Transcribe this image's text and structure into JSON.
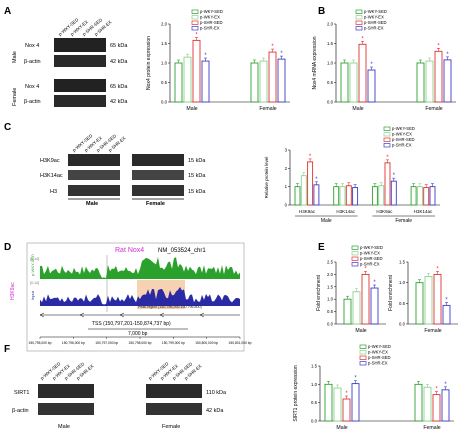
{
  "panels": {
    "A": "A",
    "B": "B",
    "C": "C",
    "D": "D",
    "E": "E",
    "F": "F"
  },
  "groups": [
    "p-WKY-SED",
    "p-WKY-EX",
    "p-SHR-SED",
    "p-SHR-EX"
  ],
  "sexes": {
    "male": "Male",
    "female": "Female"
  },
  "blot_rows": {
    "nox4": "Nox 4",
    "bactin": "β-actin",
    "h3k9ac": "H3K9ac",
    "h3k14ac": "H3K14ac",
    "h3": "H3",
    "sirt1": "SIRT1"
  },
  "kda": {
    "k65": "65 kDa",
    "k42": "42 kDa",
    "k15": "15 kDa",
    "k110": "110 kDa"
  },
  "star": "*",
  "track": {
    "title_rat": "Rat Nox4",
    "title_nm": "NM_053524_chr1",
    "sample": "H3K9ac",
    "input": "Input",
    "scale1": "[0-14]",
    "scale2": "[0-14]",
    "peak": "Peak region (150,796,200-150,796,800)",
    "tss": "TSS (150,797,201-150,874,737 bp)",
    "kb": "7,000 bp",
    "coords": [
      "150,795,000 bp",
      "150,796,000 bp",
      "150,797,000 bp",
      "150,798,000 bp",
      "150,799,000 bp",
      "150,800,000 bp",
      "150,801,000 bp"
    ]
  },
  "colors": {
    "wky_sed": "#2ca02c",
    "wky_ex": "#8fd08f",
    "shr_sed": "#e0312f",
    "shr_ex": "#3a3acc"
  },
  "chart_data": [
    {
      "panel": "A",
      "type": "bar",
      "ylabel": "Nox4 protein expression",
      "ylim": [
        0,
        2.0
      ],
      "yticks": [
        0,
        0.5,
        1.0,
        1.5,
        2.0
      ],
      "categories": [
        "Male",
        "Female"
      ],
      "series": [
        {
          "name": "p-WKY-SED",
          "values": [
            1.0,
            1.0
          ]
        },
        {
          "name": "p-WKY-EX",
          "values": [
            1.15,
            1.05
          ]
        },
        {
          "name": "p-SHR-SED",
          "values": [
            1.58,
            1.28
          ]
        },
        {
          "name": "p-SHR-EX",
          "values": [
            1.05,
            1.1
          ]
        }
      ],
      "stars": [
        [
          false,
          false,
          true,
          true
        ],
        [
          false,
          false,
          true,
          true
        ]
      ]
    },
    {
      "panel": "B",
      "type": "bar",
      "ylabel": "Nox4 mRNA expression",
      "ylim": [
        0,
        2.0
      ],
      "yticks": [
        0,
        0.5,
        1.0,
        1.5,
        2.0
      ],
      "categories": [
        "Male",
        "Female"
      ],
      "series": [
        {
          "name": "p-WKY-SED",
          "values": [
            1.0,
            1.0
          ]
        },
        {
          "name": "p-WKY-EX",
          "values": [
            1.0,
            1.05
          ]
        },
        {
          "name": "p-SHR-SED",
          "values": [
            1.48,
            1.3
          ]
        },
        {
          "name": "p-SHR-EX",
          "values": [
            0.82,
            1.08
          ]
        }
      ],
      "stars": [
        [
          false,
          false,
          true,
          true
        ],
        [
          false,
          false,
          true,
          true
        ]
      ]
    },
    {
      "panel": "C",
      "type": "bar",
      "ylabel": "Relative protein level",
      "ylim": [
        0,
        3
      ],
      "yticks": [
        0,
        1,
        2,
        3
      ],
      "categories": [
        "H3K9ac",
        "H3K14ac",
        "H3K9ac",
        "H3K14ac"
      ],
      "category_groups": [
        "Male",
        "Female"
      ],
      "series": [
        {
          "name": "p-WKY-SED",
          "values": [
            1.0,
            1.0,
            1.0,
            1.0
          ]
        },
        {
          "name": "p-WKY-EX",
          "values": [
            1.6,
            1.0,
            1.05,
            1.0
          ]
        },
        {
          "name": "p-SHR-SED",
          "values": [
            2.35,
            1.05,
            2.3,
            0.95
          ]
        },
        {
          "name": "p-SHR-EX",
          "values": [
            1.1,
            0.95,
            1.3,
            1.0
          ]
        }
      ],
      "stars": [
        [
          false,
          false,
          true,
          true
        ],
        [
          false,
          false,
          false,
          false
        ],
        [
          false,
          false,
          true,
          true
        ],
        [
          false,
          false,
          false,
          false
        ]
      ]
    },
    {
      "panel": "E",
      "type": "bar",
      "ylabel": "Fold enrichment",
      "ylim": [
        0,
        2.5
      ],
      "yticks": [
        0.0,
        0.5,
        1.0,
        1.5,
        2.0,
        2.5
      ],
      "categories": [
        "Male"
      ],
      "series": [
        {
          "name": "p-WKY-SED",
          "values": [
            1.0
          ]
        },
        {
          "name": "p-WKY-EX",
          "values": [
            1.3
          ]
        },
        {
          "name": "p-SHR-SED",
          "values": [
            2.0
          ]
        },
        {
          "name": "p-SHR-EX",
          "values": [
            1.45
          ]
        }
      ],
      "stars": [
        [
          false,
          false,
          true,
          true
        ]
      ]
    },
    {
      "panel": "E2",
      "type": "bar",
      "ylabel": "Fold enrichment",
      "ylim": [
        0,
        1.5
      ],
      "yticks": [
        0.0,
        0.5,
        1.0,
        1.5
      ],
      "categories": [
        "Female"
      ],
      "series": [
        {
          "name": "p-WKY-SED",
          "values": [
            1.0
          ]
        },
        {
          "name": "p-WKY-EX",
          "values": [
            1.15
          ]
        },
        {
          "name": "p-SHR-SED",
          "values": [
            1.2
          ]
        },
        {
          "name": "p-SHR-EX",
          "values": [
            0.45
          ]
        }
      ],
      "stars": [
        [
          false,
          false,
          true,
          true
        ]
      ]
    },
    {
      "panel": "F",
      "type": "bar",
      "ylabel": "SIRT1 protein expression",
      "ylim": [
        0,
        1.5
      ],
      "yticks": [
        0.0,
        0.5,
        1.0,
        1.5
      ],
      "categories": [
        "Male",
        "Female"
      ],
      "series": [
        {
          "name": "p-WKY-SED",
          "values": [
            1.0,
            1.0
          ]
        },
        {
          "name": "p-WKY-EX",
          "values": [
            0.9,
            0.92
          ]
        },
        {
          "name": "p-SHR-SED",
          "values": [
            0.6,
            0.72
          ]
        },
        {
          "name": "p-SHR-EX",
          "values": [
            1.02,
            0.85
          ]
        }
      ],
      "stars": [
        [
          false,
          false,
          true,
          true
        ],
        [
          false,
          false,
          true,
          true
        ]
      ]
    }
  ]
}
